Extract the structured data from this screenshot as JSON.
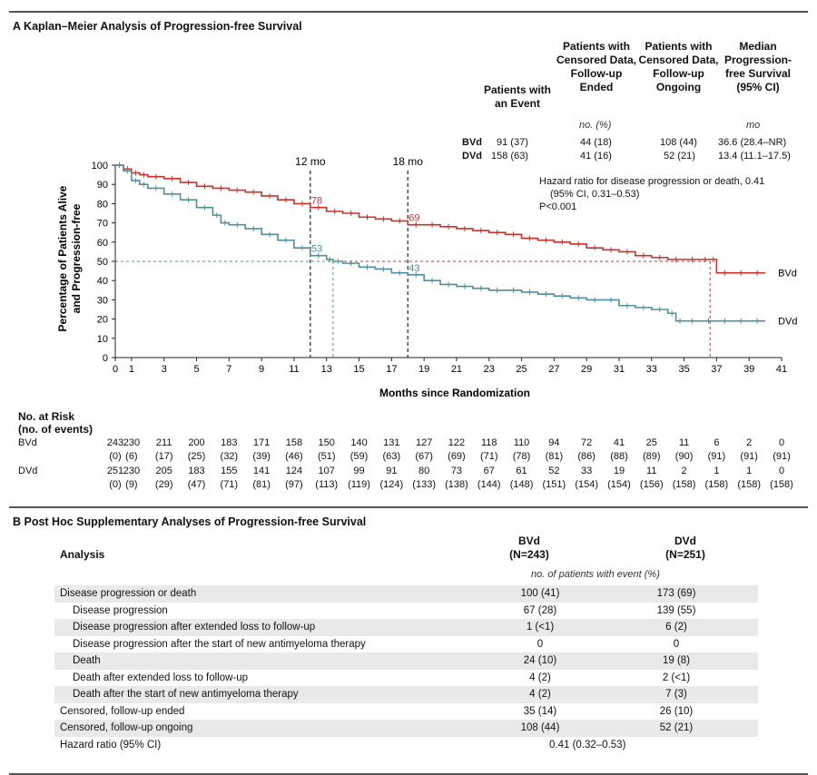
{
  "panelA": {
    "title": "A  Kaplan–Meier Analysis of Progression-free Survival",
    "col_headers": [
      "Patients with an Event",
      "Patients with Censored Data, Follow-up Ended",
      "Patients with Censored Data, Follow-up Ongoing",
      "Median Progression-free Survival (95% CI)"
    ],
    "unit_no": "no. (%)",
    "unit_mo": "mo",
    "rows": [
      {
        "arm": "BVd",
        "event": "91 (37)",
        "cens_ended": "44 (18)",
        "cens_ongoing": "108 (44)",
        "median": "36.6 (28.4–NR)"
      },
      {
        "arm": "DVd",
        "event": "158 (63)",
        "cens_ended": "41 (16)",
        "cens_ongoing": "52 (21)",
        "median": "13.4 (11.1–17.5)"
      }
    ],
    "hr_line1": "Hazard ratio for disease progression or death, 0.41",
    "hr_line2": "(95% CI, 0.31–0.53)",
    "p_value": "P<0.001",
    "risk_title_1": "No. at Risk",
    "risk_title_2": "(no. of events)"
  },
  "chart_data": {
    "type": "line",
    "xlabel": "Months since Randomization",
    "ylabel": "Percentage of Patients Alive and Progression-free",
    "xlim": [
      0,
      41
    ],
    "ylim": [
      0,
      100
    ],
    "x_ticks": [
      0,
      1,
      3,
      5,
      7,
      9,
      11,
      13,
      15,
      17,
      19,
      21,
      23,
      25,
      27,
      29,
      31,
      33,
      35,
      37,
      39,
      41
    ],
    "y_ticks": [
      0,
      10,
      20,
      30,
      40,
      50,
      60,
      70,
      80,
      90,
      100
    ],
    "colors": {
      "BVd": "#c8312a",
      "DVd": "#4f8ea0"
    },
    "series": [
      {
        "name": "BVd",
        "x": [
          0,
          0.5,
          1,
          1.5,
          2,
          3,
          4,
          5,
          6,
          7,
          8,
          9,
          10,
          11,
          12,
          13,
          14,
          15,
          16,
          17,
          18,
          19,
          20,
          21,
          22,
          23,
          24,
          25,
          26,
          27,
          28,
          29,
          30,
          31,
          32,
          33,
          34,
          35,
          36,
          36.6,
          37,
          38,
          39,
          40
        ],
        "y": [
          100,
          98,
          96,
          95,
          94,
          93,
          91,
          89,
          88,
          87,
          86,
          84,
          82,
          80,
          78,
          76,
          75,
          73,
          72,
          71,
          69,
          69,
          68,
          67,
          66,
          65,
          64,
          62,
          61,
          60,
          59,
          57,
          56,
          55,
          53,
          52,
          51,
          51,
          51,
          51,
          44,
          44,
          44,
          44
        ]
      },
      {
        "name": "DVd",
        "x": [
          0,
          0.5,
          1,
          1.5,
          2,
          3,
          4,
          5,
          6,
          6.5,
          7,
          8,
          9,
          10,
          11,
          12,
          13,
          13.4,
          14,
          15,
          16,
          17,
          18,
          19,
          20,
          21,
          22,
          23,
          24,
          25,
          26,
          27,
          28,
          29,
          30,
          31,
          32,
          33,
          34,
          34.5,
          35,
          36,
          37,
          38,
          39,
          40
        ],
        "y": [
          100,
          97,
          92,
          90,
          88,
          85,
          82,
          78,
          74,
          70,
          69,
          67,
          64,
          61,
          57,
          53,
          51,
          50,
          49,
          47,
          46,
          44,
          43,
          40,
          38,
          37,
          36,
          35,
          35,
          34,
          33,
          32,
          31,
          30,
          30,
          27,
          26,
          25,
          23,
          19,
          19,
          19,
          19,
          19,
          19,
          19
        ]
      }
    ],
    "annotations": [
      {
        "text": "78",
        "x": 12,
        "y": 78,
        "series": "BVd"
      },
      {
        "text": "69",
        "x": 18,
        "y": 69,
        "series": "BVd"
      },
      {
        "text": "53",
        "x": 12,
        "y": 53,
        "series": "DVd"
      },
      {
        "text": "43",
        "x": 18,
        "y": 43,
        "series": "DVd"
      },
      {
        "text": "12 mo",
        "x": 12
      },
      {
        "text": "18 mo",
        "x": 18
      }
    ],
    "median_lines": {
      "y": 50,
      "BVd_x": 36.6,
      "DVd_x": 13.4
    },
    "series_end_labels": [
      "BVd",
      "DVd"
    ]
  },
  "risk_table": {
    "times": [
      0,
      1,
      3,
      5,
      7,
      9,
      11,
      13,
      15,
      17,
      19,
      21,
      23,
      25,
      27,
      29,
      31,
      33,
      35,
      37,
      39,
      41
    ],
    "BVd": {
      "label": "BVd",
      "at_risk": [
        "243",
        "230",
        "211",
        "200",
        "183",
        "171",
        "158",
        "150",
        "140",
        "131",
        "127",
        "122",
        "118",
        "110",
        "94",
        "72",
        "41",
        "25",
        "11",
        "6",
        "2",
        "0"
      ],
      "events": [
        "(0)",
        "(6)",
        "(17)",
        "(25)",
        "(32)",
        "(39)",
        "(46)",
        "(51)",
        "(59)",
        "(63)",
        "(67)",
        "(69)",
        "(71)",
        "(78)",
        "(81)",
        "(86)",
        "(88)",
        "(89)",
        "(90)",
        "(91)",
        "(91)",
        "(91)"
      ]
    },
    "DVd": {
      "label": "DVd",
      "at_risk": [
        "251",
        "230",
        "205",
        "183",
        "155",
        "141",
        "124",
        "107",
        "99",
        "91",
        "80",
        "73",
        "67",
        "61",
        "52",
        "33",
        "19",
        "11",
        "2",
        "1",
        "1",
        "0"
      ],
      "events": [
        "(0)",
        "(9)",
        "(29)",
        "(47)",
        "(71)",
        "(81)",
        "(97)",
        "(113)",
        "(119)",
        "(124)",
        "(133)",
        "(138)",
        "(144)",
        "(148)",
        "(151)",
        "(154)",
        "(154)",
        "(156)",
        "(158)",
        "(158)",
        "(158)",
        "(158)"
      ]
    }
  },
  "panelB": {
    "title": "B  Post Hoc Supplementary Analyses of Progression-free Survival",
    "analysis_header": "Analysis",
    "bvd_header_1": "BVd",
    "bvd_header_2": "(N=243)",
    "dvd_header_1": "DVd",
    "dvd_header_2": "(N=251)",
    "unit": "no. of patients with event (%)",
    "rows": [
      {
        "label": "Disease progression or death",
        "bvd": "100 (41)",
        "dvd": "173 (69)",
        "indent": false,
        "shade": true
      },
      {
        "label": "Disease progression",
        "bvd": "67 (28)",
        "dvd": "139 (55)",
        "indent": true,
        "shade": false
      },
      {
        "label": "Disease progression after extended loss to follow-up",
        "bvd": "1 (<1)",
        "dvd": "6 (2)",
        "indent": true,
        "shade": true
      },
      {
        "label": "Disease progression after the start of new antimyeloma therapy",
        "bvd": "0",
        "dvd": "0",
        "indent": true,
        "shade": false
      },
      {
        "label": "Death",
        "bvd": "24 (10)",
        "dvd": "19 (8)",
        "indent": true,
        "shade": true
      },
      {
        "label": "Death after extended loss to follow-up",
        "bvd": "4 (2)",
        "dvd": "2 (<1)",
        "indent": true,
        "shade": false
      },
      {
        "label": "Death after the start of new antimyeloma therapy",
        "bvd": "4 (2)",
        "dvd": "7 (3)",
        "indent": true,
        "shade": true
      },
      {
        "label": "Censored, follow-up ended",
        "bvd": "35 (14)",
        "dvd": "26 (10)",
        "indent": false,
        "shade": false
      },
      {
        "label": "Censored, follow-up ongoing",
        "bvd": "108 (44)",
        "dvd": "52 (21)",
        "indent": false,
        "shade": true
      }
    ],
    "hr_label": "Hazard ratio (95% CI)",
    "hr_value": "0.41 (0.32–0.53)"
  }
}
